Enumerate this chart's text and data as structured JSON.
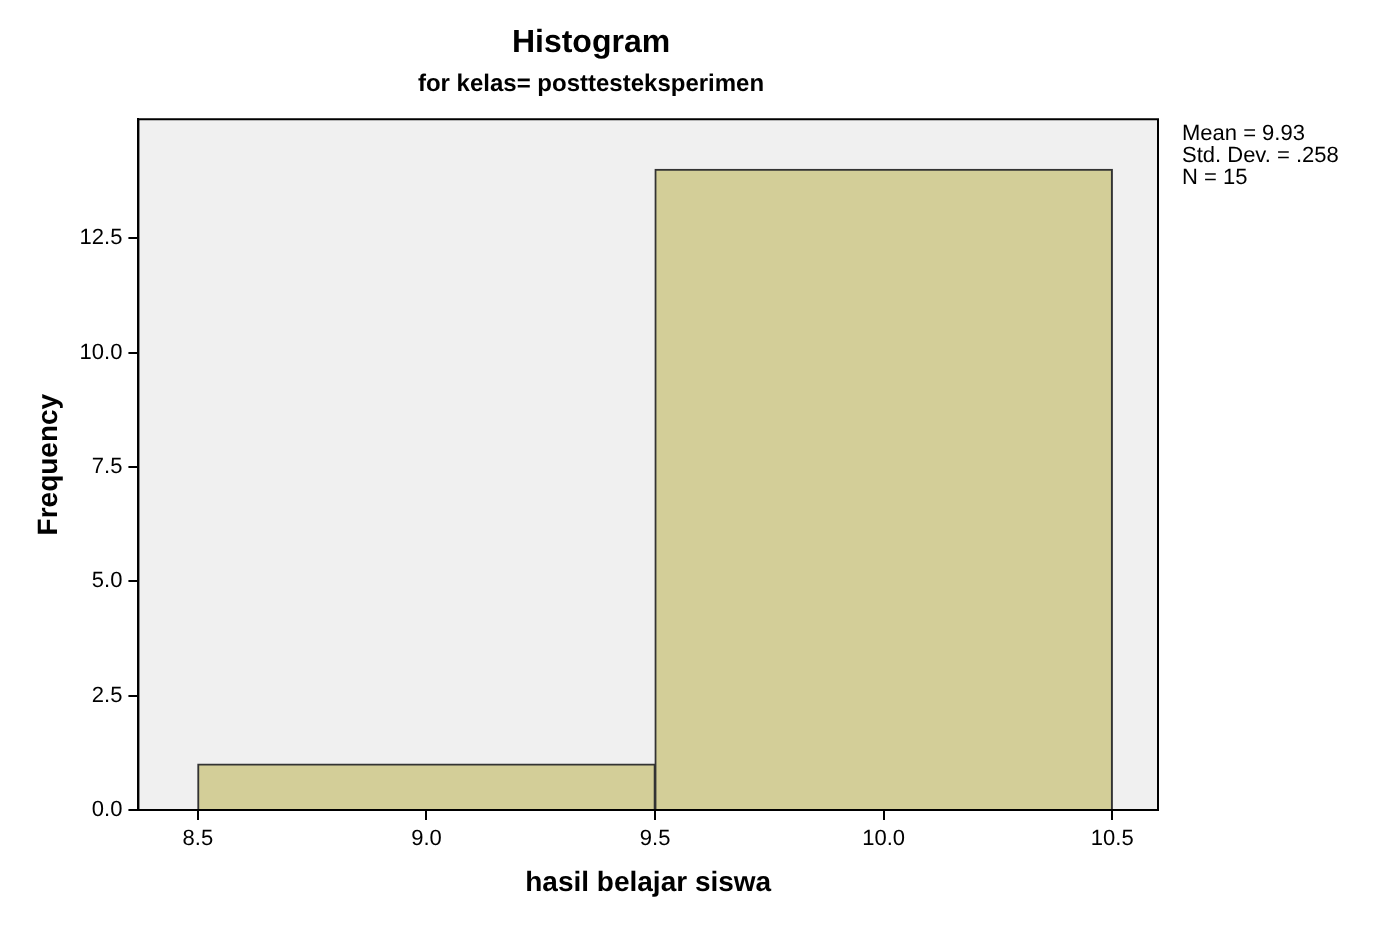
{
  "chart_data": {
    "type": "histogram",
    "title": "Histogram",
    "subtitle": "for kelas= posttesteksperimen",
    "xlabel": "hasil belajar siswa",
    "ylabel": "Frequency",
    "bins": [
      8.5,
      9.5,
      10.5
    ],
    "values": [
      1,
      14
    ],
    "color": "#d3ce98",
    "xlim": [
      8.37,
      10.6
    ],
    "xticks": [
      8.5,
      {
        "value": 9,
        "label": "9.0"
      },
      9.5,
      {
        "value": 10,
        "label": "10.0"
      },
      10.5
    ],
    "ylim": [
      0,
      15.1
    ],
    "yticks": [
      {
        "value": 0,
        "label": "0.0"
      },
      2.5,
      {
        "value": 5,
        "label": "5.0"
      },
      7.5,
      {
        "value": 10,
        "label": "10.0"
      },
      12.5
    ],
    "annotations": [
      "Mean = 9.93",
      "Std. Dev. = .258",
      "N = 15"
    ],
    "grid": false,
    "legend": false
  }
}
